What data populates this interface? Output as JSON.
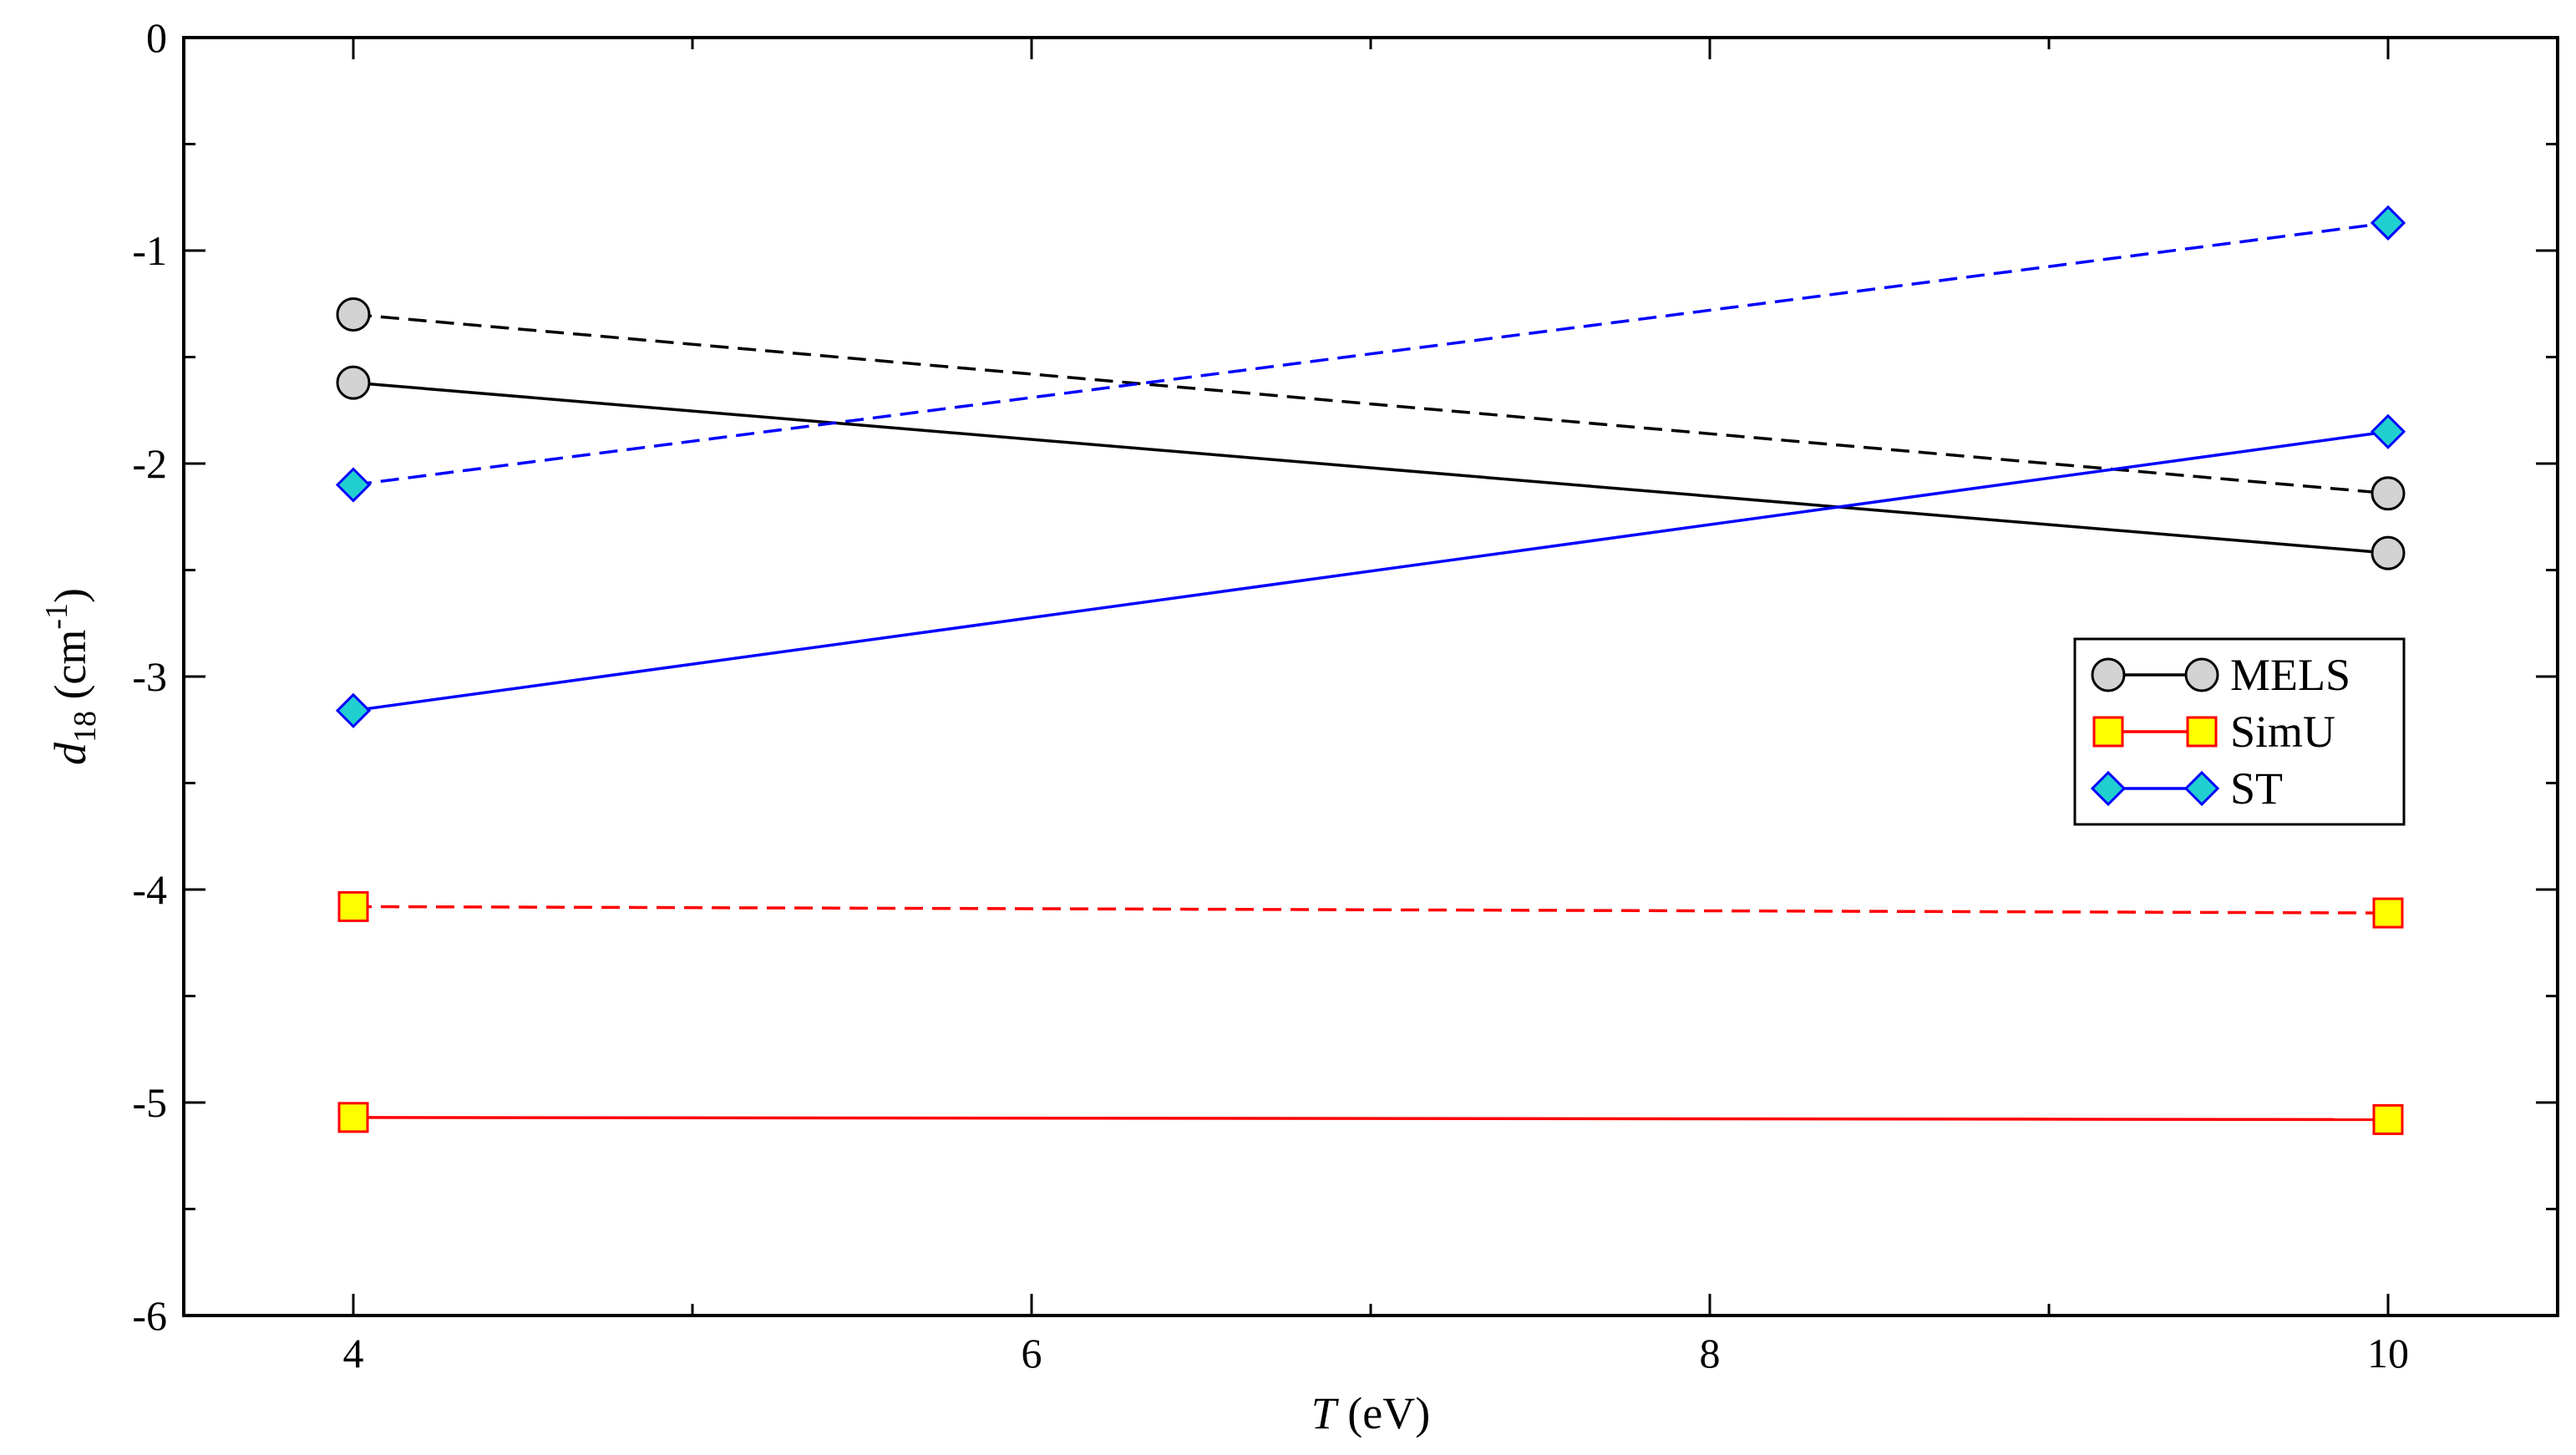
{
  "chart_data": {
    "type": "line",
    "xlabel": {
      "var": "T",
      "unit": " (eV)"
    },
    "ylabel": {
      "var": "d",
      "sub": "18",
      "unit": " (cm",
      "sup": "-1",
      "close": ")"
    },
    "xlim": [
      3.5,
      10.5
    ],
    "ylim": [
      -6,
      0
    ],
    "x_ticks_major": [
      4,
      6,
      8,
      10
    ],
    "x_ticks_minor": [
      5,
      7,
      9
    ],
    "y_ticks_major": [
      0,
      -1,
      -2,
      -3,
      -4,
      -5,
      -6
    ],
    "y_ticks_minor": [
      -0.5,
      -1.5,
      -2.5,
      -3.5,
      -4.5,
      -5.5
    ],
    "x_tick_labels": [
      "4",
      "6",
      "8",
      "10"
    ],
    "y_tick_labels": [
      "0",
      "-1",
      "-2",
      "-3",
      "-4",
      "-5",
      "-6"
    ],
    "grid": false,
    "legend_position": "right",
    "series": [
      {
        "name": "MELS",
        "legend": true,
        "line_style": "solid",
        "color": "#000000",
        "marker": "circle",
        "marker_fill": "#d3d3d3",
        "marker_edge": "#000000",
        "x": [
          4,
          10
        ],
        "y": [
          -1.62,
          -2.42
        ]
      },
      {
        "name": "MELS",
        "legend": false,
        "line_style": "dashed",
        "color": "#000000",
        "marker": "circle",
        "marker_fill": "#d3d3d3",
        "marker_edge": "#000000",
        "x": [
          4,
          10
        ],
        "y": [
          -1.3,
          -2.14
        ]
      },
      {
        "name": "SimU",
        "legend": true,
        "line_style": "solid",
        "color": "#ff0000",
        "marker": "square",
        "marker_fill": "#ffff00",
        "marker_edge": "#ff0000",
        "x": [
          4,
          10
        ],
        "y": [
          -5.07,
          -5.08
        ]
      },
      {
        "name": "SimU",
        "legend": false,
        "line_style": "dashed",
        "color": "#ff0000",
        "marker": "square",
        "marker_fill": "#ffff00",
        "marker_edge": "#ff0000",
        "x": [
          4,
          10
        ],
        "y": [
          -4.08,
          -4.11
        ]
      },
      {
        "name": "ST",
        "legend": true,
        "line_style": "solid",
        "color": "#0000ff",
        "marker": "diamond",
        "marker_fill": "#20d0d0",
        "marker_edge": "#0000ff",
        "x": [
          4,
          10
        ],
        "y": [
          -3.16,
          -1.85
        ]
      },
      {
        "name": "ST",
        "legend": false,
        "line_style": "dashed",
        "color": "#0000ff",
        "marker": "diamond",
        "marker_fill": "#20d0d0",
        "marker_edge": "#0000ff",
        "x": [
          4,
          10
        ],
        "y": [
          -2.1,
          -0.87
        ]
      }
    ]
  }
}
